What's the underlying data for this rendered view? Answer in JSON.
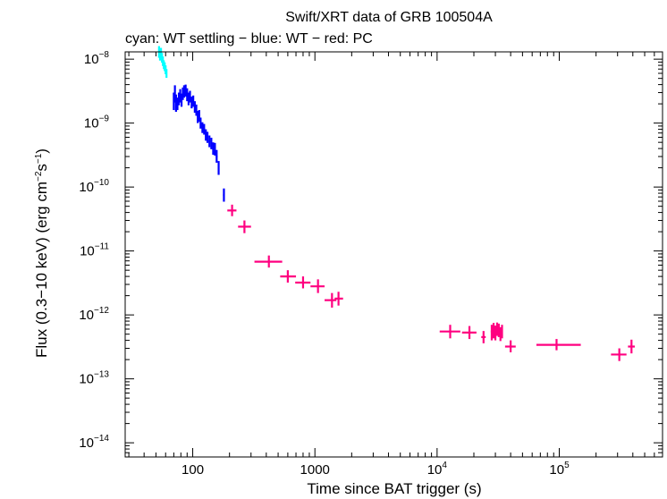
{
  "chart_data": {
    "type": "scatter",
    "title": "Swift/XRT data of GRB 100504A",
    "subtitle": "cyan: WT settling − blue: WT − red: PC",
    "xlabel": "Time since BAT trigger (s)",
    "ylabel": {
      "prefix": "Flux (0.3−10 keV) (erg cm",
      "exp1": "−2",
      "mid": "s",
      "exp2": "−1",
      "suffix": ")"
    },
    "xscale": "log",
    "yscale": "log",
    "xlim": [
      28,
      700000
    ],
    "ylim": [
      6e-15,
      1.3e-08
    ],
    "grid": false,
    "x_ticks": [
      {
        "value": 100,
        "label": "100"
      },
      {
        "value": 1000,
        "label": "1000"
      },
      {
        "value": 10000,
        "base": "10",
        "exp": "4"
      },
      {
        "value": 100000,
        "base": "10",
        "exp": "5"
      }
    ],
    "y_ticks": [
      {
        "value": 1e-08,
        "base": "10",
        "exp": "−8"
      },
      {
        "value": 1e-09,
        "base": "10",
        "exp": "−9"
      },
      {
        "value": 1e-10,
        "base": "10",
        "exp": "−10"
      },
      {
        "value": 1e-11,
        "base": "10",
        "exp": "−11"
      },
      {
        "value": 1e-12,
        "base": "10",
        "exp": "−12"
      },
      {
        "value": 1e-13,
        "base": "10",
        "exp": "−13"
      },
      {
        "value": 1e-14,
        "base": "10",
        "exp": "−14"
      }
    ],
    "series": [
      {
        "color": "#00ffff",
        "points": [
          {
            "x": 53,
            "y": 1.3e-08,
            "xerr": 0.5,
            "ylo": 1.05e-08,
            "yhi": 1.6e-08
          },
          {
            "x": 54,
            "y": 1.15e-08,
            "xerr": 0.5,
            "ylo": 9.5e-09,
            "yhi": 1.4e-08
          },
          {
            "x": 55,
            "y": 1.25e-08,
            "xerr": 0.5,
            "ylo": 1e-08,
            "yhi": 1.5e-08
          },
          {
            "x": 56,
            "y": 1.05e-08,
            "xerr": 0.5,
            "ylo": 8.8e-09,
            "yhi": 1.25e-08
          },
          {
            "x": 57,
            "y": 9.2e-09,
            "xerr": 0.5,
            "ylo": 7.8e-09,
            "yhi": 1.1e-08
          },
          {
            "x": 58,
            "y": 8.2e-09,
            "xerr": 0.5,
            "ylo": 7e-09,
            "yhi": 9.6e-09
          },
          {
            "x": 59,
            "y": 7.6e-09,
            "xerr": 0.5,
            "ylo": 6.5e-09,
            "yhi": 8.9e-09
          },
          {
            "x": 60,
            "y": 6.8e-09,
            "xerr": 0.5,
            "ylo": 5.8e-09,
            "yhi": 8e-09
          },
          {
            "x": 61,
            "y": 6e-09,
            "xerr": 0.5,
            "ylo": 5.1e-09,
            "yhi": 7e-09
          }
        ]
      },
      {
        "color": "#0000ff",
        "points": [
          {
            "x": 70,
            "y": 2.2e-09,
            "xerr": 0.5,
            "ylo": 1.6e-09,
            "yhi": 3e-09
          },
          {
            "x": 71.5,
            "y": 2.9e-09,
            "xerr": 0.7,
            "ylo": 2.1e-09,
            "yhi": 3.9e-09
          },
          {
            "x": 73,
            "y": 2.1e-09,
            "xerr": 0.7,
            "ylo": 1.5e-09,
            "yhi": 2.8e-09
          },
          {
            "x": 75,
            "y": 2e-09,
            "xerr": 0.8,
            "ylo": 1.6e-09,
            "yhi": 2.5e-09
          },
          {
            "x": 77,
            "y": 2.4e-09,
            "xerr": 0.8,
            "ylo": 1.9e-09,
            "yhi": 3e-09
          },
          {
            "x": 79,
            "y": 2.7e-09,
            "xerr": 0.8,
            "ylo": 2.1e-09,
            "yhi": 3.4e-09
          },
          {
            "x": 81,
            "y": 2.3e-09,
            "xerr": 0.9,
            "ylo": 1.8e-09,
            "yhi": 2.9e-09
          },
          {
            "x": 83,
            "y": 2.9e-09,
            "xerr": 0.9,
            "ylo": 2.3e-09,
            "yhi": 3.6e-09
          },
          {
            "x": 85,
            "y": 3.1e-09,
            "xerr": 0.9,
            "ylo": 2.5e-09,
            "yhi": 3.9e-09
          },
          {
            "x": 87.5,
            "y": 3.2e-09,
            "xerr": 1,
            "ylo": 2.6e-09,
            "yhi": 4e-09
          },
          {
            "x": 90,
            "y": 2.8e-09,
            "xerr": 1,
            "ylo": 2.2e-09,
            "yhi": 3.5e-09
          },
          {
            "x": 92.5,
            "y": 2.4e-09,
            "xerr": 1,
            "ylo": 1.9e-09,
            "yhi": 3e-09
          },
          {
            "x": 95,
            "y": 2.6e-09,
            "xerr": 1,
            "ylo": 2.1e-09,
            "yhi": 3.2e-09
          },
          {
            "x": 98,
            "y": 2.1e-09,
            "xerr": 1.2,
            "ylo": 1.7e-09,
            "yhi": 2.6e-09
          },
          {
            "x": 101,
            "y": 2.2e-09,
            "xerr": 1.2,
            "ylo": 1.8e-09,
            "yhi": 2.7e-09
          },
          {
            "x": 104,
            "y": 1.8e-09,
            "xerr": 1.3,
            "ylo": 1.45e-09,
            "yhi": 2.2e-09
          },
          {
            "x": 107,
            "y": 1.6e-09,
            "xerr": 1.4,
            "ylo": 1.3e-09,
            "yhi": 1.95e-09
          },
          {
            "x": 110,
            "y": 1.25e-09,
            "xerr": 1.4,
            "ylo": 1e-09,
            "yhi": 1.55e-09
          },
          {
            "x": 113,
            "y": 1.3e-09,
            "xerr": 1.5,
            "ylo": 1.05e-09,
            "yhi": 1.6e-09
          },
          {
            "x": 116,
            "y": 1e-09,
            "xerr": 1.5,
            "ylo": 8.2e-10,
            "yhi": 1.22e-09
          },
          {
            "x": 120,
            "y": 8.5e-10,
            "xerr": 1.7,
            "ylo": 7e-10,
            "yhi": 1.03e-09
          },
          {
            "x": 124,
            "y": 8e-10,
            "xerr": 1.8,
            "ylo": 6.6e-10,
            "yhi": 9.7e-10
          },
          {
            "x": 128,
            "y": 6.5e-10,
            "xerr": 2,
            "ylo": 5.3e-10,
            "yhi": 8e-10
          },
          {
            "x": 132,
            "y": 6e-10,
            "xerr": 2,
            "ylo": 4.9e-10,
            "yhi": 7.3e-10
          },
          {
            "x": 137,
            "y": 5.2e-10,
            "xerr": 2.2,
            "ylo": 4.2e-10,
            "yhi": 6.4e-10
          },
          {
            "x": 142,
            "y": 4.8e-10,
            "xerr": 2.3,
            "ylo": 3.9e-10,
            "yhi": 5.9e-10
          },
          {
            "x": 147,
            "y": 4e-10,
            "xerr": 2.4,
            "ylo": 3.2e-10,
            "yhi": 5e-10
          },
          {
            "x": 152,
            "y": 3.9e-10,
            "xerr": 2.5,
            "ylo": 3.1e-10,
            "yhi": 4.9e-10
          },
          {
            "x": 157,
            "y": 3e-10,
            "xerr": 2.6,
            "ylo": 2.4e-10,
            "yhi": 3.8e-10
          },
          {
            "x": 163,
            "y": 2e-10,
            "xerr": 2,
            "ylo": 1.55e-10,
            "yhi": 2.55e-10
          },
          {
            "x": 180,
            "y": 7.5e-11,
            "xerr": 3,
            "ylo": 5.9e-11,
            "yhi": 9.5e-11
          }
        ]
      },
      {
        "color": "#ff0080",
        "points": [
          {
            "x": 210,
            "y": 4.3e-11,
            "xlo": 192,
            "xhi": 228,
            "ylo": 3.5e-11,
            "yhi": 5.3e-11
          },
          {
            "x": 265,
            "y": 2.4e-11,
            "xlo": 235,
            "xhi": 300,
            "ylo": 1.9e-11,
            "yhi": 3e-11
          },
          {
            "x": 420,
            "y": 6.8e-12,
            "xlo": 320,
            "xhi": 540,
            "ylo": 5.5e-12,
            "yhi": 8.5e-12
          },
          {
            "x": 600,
            "y": 4e-12,
            "xlo": 520,
            "xhi": 700,
            "ylo": 3.2e-12,
            "yhi": 5e-12
          },
          {
            "x": 800,
            "y": 3.2e-12,
            "xlo": 690,
            "xhi": 920,
            "ylo": 2.6e-12,
            "yhi": 4e-12
          },
          {
            "x": 1060,
            "y": 2.8e-12,
            "xlo": 920,
            "xhi": 1200,
            "ylo": 2.2e-12,
            "yhi": 3.6e-12
          },
          {
            "x": 1380,
            "y": 1.7e-12,
            "xlo": 1200,
            "xhi": 1500,
            "ylo": 1.3e-12,
            "yhi": 2.2e-12
          },
          {
            "x": 1560,
            "y": 1.8e-12,
            "xlo": 1450,
            "xhi": 1700,
            "ylo": 1.4e-12,
            "yhi": 2.3e-12
          },
          {
            "x": 12800,
            "y": 5.5e-13,
            "xlo": 10500,
            "xhi": 15500,
            "ylo": 4.3e-13,
            "yhi": 7e-13
          },
          {
            "x": 18400,
            "y": 5.3e-13,
            "xlo": 16000,
            "xhi": 21000,
            "ylo": 4.2e-13,
            "yhi": 6.7e-13
          },
          {
            "x": 24000,
            "y": 4.5e-13,
            "xlo": 23000,
            "xhi": 25000,
            "ylo": 3.6e-13,
            "yhi": 5.6e-13
          },
          {
            "x": 28000,
            "y": 5.5e-13,
            "xlo": 27500,
            "xhi": 28500,
            "ylo": 4e-13,
            "yhi": 7e-13
          },
          {
            "x": 29000,
            "y": 5.8e-13,
            "xlo": 28500,
            "xhi": 29500,
            "ylo": 4.3e-13,
            "yhi": 7.5e-13
          },
          {
            "x": 30000,
            "y": 5.3e-13,
            "xlo": 29500,
            "xhi": 30500,
            "ylo": 4e-13,
            "yhi": 6.8e-13
          },
          {
            "x": 31000,
            "y": 6.2e-13,
            "xlo": 30500,
            "xhi": 31500,
            "ylo": 4.7e-13,
            "yhi": 7.6e-13
          },
          {
            "x": 32000,
            "y": 5.8e-13,
            "xlo": 31500,
            "xhi": 32500,
            "ylo": 4.5e-13,
            "yhi": 7.3e-13
          },
          {
            "x": 33000,
            "y": 5e-13,
            "xlo": 32500,
            "xhi": 33500,
            "ylo": 3.9e-13,
            "yhi": 6.4e-13
          },
          {
            "x": 34000,
            "y": 5.5e-13,
            "xlo": 33500,
            "xhi": 34500,
            "ylo": 4.3e-13,
            "yhi": 7e-13
          },
          {
            "x": 40000,
            "y": 3.2e-13,
            "xlo": 36000,
            "xhi": 44000,
            "ylo": 2.6e-13,
            "yhi": 4e-13
          },
          {
            "x": 95000,
            "y": 3.4e-13,
            "xlo": 65000,
            "xhi": 150000,
            "ylo": 2.8e-13,
            "yhi": 4.2e-13
          },
          {
            "x": 310000,
            "y": 2.4e-13,
            "xlo": 265000,
            "xhi": 355000,
            "ylo": 1.9e-13,
            "yhi": 3e-13
          },
          {
            "x": 390000,
            "y": 3.2e-13,
            "xlo": 365000,
            "xhi": 415000,
            "ylo": 2.5e-13,
            "yhi": 4.1e-13
          }
        ]
      }
    ]
  }
}
